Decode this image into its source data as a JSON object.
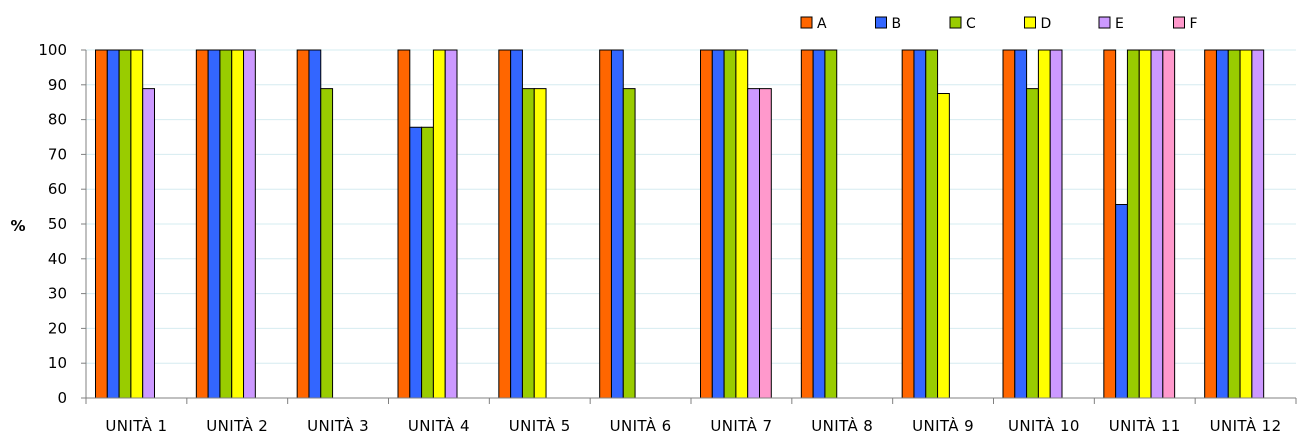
{
  "chart_data": {
    "type": "bar",
    "title": "",
    "xlabel": "",
    "ylabel": "%",
    "ylim": [
      0,
      100
    ],
    "yticks": [
      0,
      10,
      20,
      30,
      40,
      50,
      60,
      70,
      80,
      90,
      100
    ],
    "grid": true,
    "legend_position": "top-right",
    "categories": [
      "UNITÀ 1",
      "UNITÀ 2",
      "UNITÀ 3",
      "UNITÀ 4",
      "UNITÀ 5",
      "UNITÀ 6",
      "UNITÀ 7",
      "UNITÀ 8",
      "UNITÀ 9",
      "UNITÀ 10",
      "UNITÀ 11",
      "UNITÀ 12"
    ],
    "series": [
      {
        "name": "A",
        "color": "#FF6600",
        "values": [
          100,
          100,
          100,
          100,
          100,
          100,
          100,
          100,
          100,
          100,
          100,
          100
        ]
      },
      {
        "name": "B",
        "color": "#3366FF",
        "values": [
          100,
          100,
          100,
          77.8,
          100,
          100,
          100,
          100,
          100,
          100,
          55.6,
          100
        ]
      },
      {
        "name": "C",
        "color": "#99CC00",
        "values": [
          100,
          100,
          88.9,
          77.8,
          88.9,
          88.9,
          100,
          100,
          100,
          88.9,
          100,
          100
        ]
      },
      {
        "name": "D",
        "color": "#FFFF00",
        "values": [
          100,
          100,
          null,
          100,
          88.9,
          null,
          100,
          null,
          87.5,
          100,
          100,
          100
        ]
      },
      {
        "name": "E",
        "color": "#CC99FF",
        "values": [
          88.9,
          100,
          null,
          100,
          null,
          null,
          88.9,
          null,
          null,
          100,
          100,
          100
        ]
      },
      {
        "name": "F",
        "color": "#FF99CC",
        "values": [
          null,
          null,
          null,
          null,
          null,
          null,
          88.9,
          null,
          null,
          null,
          100,
          null
        ]
      }
    ]
  }
}
